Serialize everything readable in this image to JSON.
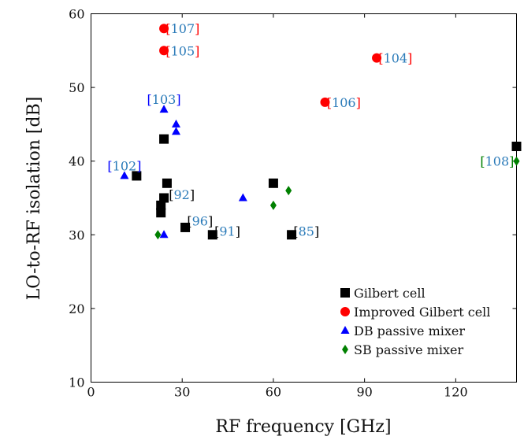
{
  "chart_data": {
    "type": "scatter",
    "xlabel": "RF frequency [GHz]",
    "ylabel": "LO-to-RF isolation [dB]",
    "xlim": [
      0,
      140
    ],
    "ylim": [
      10,
      60
    ],
    "xticks": [
      0,
      30,
      60,
      90,
      120
    ],
    "yticks": [
      10,
      20,
      30,
      40,
      50,
      60
    ],
    "legend_position": "bottom-right",
    "series": [
      {
        "name": "Gilbert cell",
        "marker": "square",
        "color": "#000000",
        "points": [
          {
            "x": 15,
            "y": 38
          },
          {
            "x": 24,
            "y": 43
          },
          {
            "x": 25,
            "y": 37
          },
          {
            "x": 24,
            "y": 35
          },
          {
            "x": 23,
            "y": 34
          },
          {
            "x": 23,
            "y": 33
          },
          {
            "x": 31,
            "y": 31
          },
          {
            "x": 40,
            "y": 30
          },
          {
            "x": 60,
            "y": 37
          },
          {
            "x": 66,
            "y": 30
          },
          {
            "x": 140,
            "y": 42
          }
        ]
      },
      {
        "name": "Improved Gilbert cell",
        "marker": "circle",
        "color": "#ff0000",
        "points": [
          {
            "x": 24,
            "y": 58
          },
          {
            "x": 24,
            "y": 55
          },
          {
            "x": 94,
            "y": 54
          },
          {
            "x": 77,
            "y": 48
          }
        ]
      },
      {
        "name": "DB passive mixer",
        "marker": "triangle",
        "color": "#0000ff",
        "points": [
          {
            "x": 24,
            "y": 47
          },
          {
            "x": 28,
            "y": 45
          },
          {
            "x": 28,
            "y": 44
          },
          {
            "x": 11,
            "y": 38
          },
          {
            "x": 50,
            "y": 35
          },
          {
            "x": 24,
            "y": 30
          }
        ]
      },
      {
        "name": "SB passive mixer",
        "marker": "diamond",
        "color": "#008000",
        "points": [
          {
            "x": 65,
            "y": 36
          },
          {
            "x": 60,
            "y": 34
          },
          {
            "x": 22,
            "y": 30
          },
          {
            "x": 140,
            "y": 40
          }
        ]
      }
    ],
    "annotations": [
      {
        "text": "[107]",
        "x": 24,
        "y": 58,
        "anchor": "start",
        "dx": 0.6,
        "dy": 0,
        "bracket_color": "#ff0000",
        "num_color": "#2b7bb9"
      },
      {
        "text": "[105]",
        "x": 24,
        "y": 55,
        "anchor": "start",
        "dx": 0.6,
        "dy": 0,
        "bracket_color": "#ff0000",
        "num_color": "#2b7bb9"
      },
      {
        "text": "[104]",
        "x": 94,
        "y": 54,
        "anchor": "start",
        "dx": 0.6,
        "dy": 0,
        "bracket_color": "#ff0000",
        "num_color": "#2b7bb9"
      },
      {
        "text": "[106]",
        "x": 77,
        "y": 48,
        "anchor": "start",
        "dx": 0.6,
        "dy": 0,
        "bracket_color": "#ff0000",
        "num_color": "#2b7bb9"
      },
      {
        "text": "[103]",
        "x": 24,
        "y": 47,
        "anchor": "middle",
        "dx": 0,
        "dy": 1.4,
        "bracket_color": "#0000ff",
        "num_color": "#2b7bb9"
      },
      {
        "text": "[102]",
        "x": 11,
        "y": 38,
        "anchor": "middle",
        "dx": 0,
        "dy": 1.4,
        "bracket_color": "#0000ff",
        "num_color": "#2b7bb9"
      },
      {
        "text": "[92]",
        "x": 25,
        "y": 37,
        "anchor": "start",
        "dx": 0.6,
        "dy": -1.5,
        "bracket_color": "#000000",
        "num_color": "#2b7bb9"
      },
      {
        "text": "[96]",
        "x": 31,
        "y": 31,
        "anchor": "start",
        "dx": 0.6,
        "dy": 0.9,
        "bracket_color": "#000000",
        "num_color": "#2b7bb9"
      },
      {
        "text": "[91]",
        "x": 40,
        "y": 30,
        "anchor": "start",
        "dx": 0.6,
        "dy": 0.5,
        "bracket_color": "#000000",
        "num_color": "#2b7bb9"
      },
      {
        "text": "[85]",
        "x": 66,
        "y": 30,
        "anchor": "start",
        "dx": 0.6,
        "dy": 0.5,
        "bracket_color": "#000000",
        "num_color": "#2b7bb9"
      },
      {
        "text": "[108]",
        "x": 140,
        "y": 40,
        "anchor": "end",
        "dx": -0.8,
        "dy": 0,
        "bracket_color": "#008000",
        "num_color": "#2b7bb9"
      }
    ]
  }
}
